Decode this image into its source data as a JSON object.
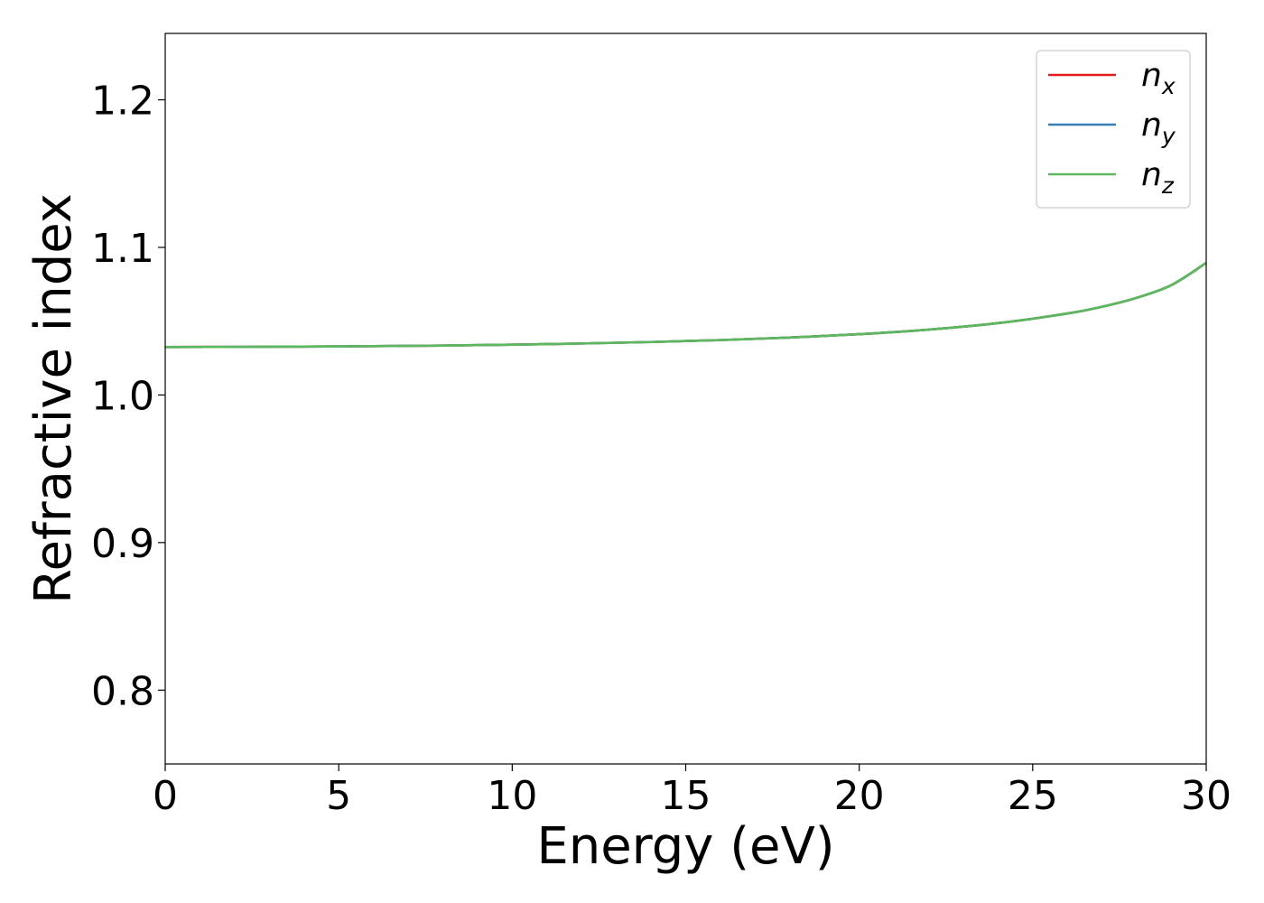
{
  "chart_data": {
    "type": "line",
    "xlabel": "Energy (eV)",
    "ylabel": "Refractive index",
    "xlim": [
      0,
      30
    ],
    "ylim": [
      0.75,
      1.245
    ],
    "xticks": [
      0,
      5,
      10,
      15,
      20,
      25,
      30
    ],
    "xtick_labels": [
      "0",
      "5",
      "10",
      "15",
      "20",
      "25",
      "30"
    ],
    "yticks": [
      0.8,
      0.9,
      1.0,
      1.1,
      1.2
    ],
    "ytick_labels": [
      "0.8",
      "0.9",
      "1.0",
      "1.1",
      "1.2"
    ],
    "grid": false,
    "legend_position": "top-right",
    "x": [
      0,
      2,
      4,
      6,
      8,
      10,
      12,
      14,
      16,
      18,
      20,
      22,
      24,
      26,
      27,
      28,
      29,
      30
    ],
    "series": [
      {
        "name": "x",
        "color": "#e41a1c",
        "values": [
          1.0325,
          1.0326,
          1.0328,
          1.0331,
          1.0335,
          1.0341,
          1.0349,
          1.0359,
          1.0372,
          1.0389,
          1.0412,
          1.0443,
          1.0487,
          1.0552,
          1.0598,
          1.0659,
          1.0745,
          1.0895
        ]
      },
      {
        "name": "y",
        "color": "#377eb8",
        "values": [
          1.0325,
          1.0326,
          1.0328,
          1.0331,
          1.0335,
          1.0341,
          1.0349,
          1.0359,
          1.0372,
          1.0389,
          1.0412,
          1.0443,
          1.0487,
          1.0552,
          1.0598,
          1.0659,
          1.0745,
          1.0895
        ]
      },
      {
        "name": "z",
        "color": "#5cb85c",
        "values": [
          1.0325,
          1.0326,
          1.0328,
          1.0331,
          1.0335,
          1.0341,
          1.0349,
          1.0359,
          1.0372,
          1.0389,
          1.0412,
          1.0443,
          1.0487,
          1.0552,
          1.0598,
          1.0659,
          1.0745,
          1.0895
        ]
      }
    ],
    "legend": [
      {
        "symbol": "n",
        "subscript": "x",
        "color": "#e41a1c"
      },
      {
        "symbol": "n",
        "subscript": "y",
        "color": "#377eb8"
      },
      {
        "symbol": "n",
        "subscript": "z",
        "color": "#5cb85c"
      }
    ]
  }
}
